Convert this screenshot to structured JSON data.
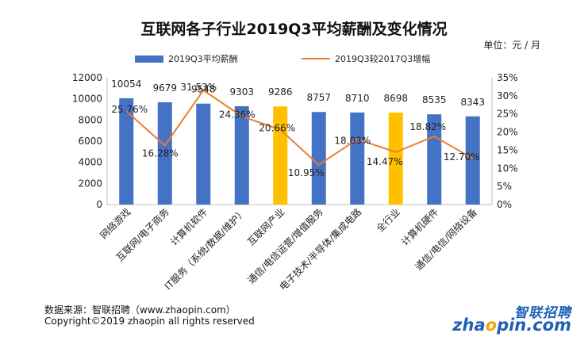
{
  "chart_data": {
    "type": "bar",
    "title": "互联网各子行业2019Q3平均薪酬及变化情况",
    "unit_label": "单位：元 / 月",
    "categories": [
      "网络游戏",
      "互联网/电子商务",
      "计算机软件",
      "IT服务（系统/数据/维护）",
      "互联网产业",
      "通信/电信运营/增值服务",
      "电子技术/半导体/集成电路",
      "全行业",
      "计算机硬件",
      "通信/电信/网络设备"
    ],
    "series": [
      {
        "name": "2019Q3平均薪酬",
        "type": "bar",
        "axis": "left",
        "values": [
          10054,
          9679,
          9548,
          9303,
          9286,
          8757,
          8710,
          8698,
          8535,
          8343
        ],
        "value_labels": [
          "10054",
          "9679",
          "9548",
          "9303",
          "9286",
          "8757",
          "8710",
          "8698",
          "8535",
          "8343"
        ],
        "color": "#4472C4",
        "highlight_color": "#FFC000",
        "highlight_indices": [
          4,
          7
        ]
      },
      {
        "name": "2019Q3较2017Q3增幅",
        "type": "line",
        "axis": "right",
        "values": [
          25.76,
          16.28,
          31.53,
          24.36,
          20.66,
          10.95,
          18.03,
          14.47,
          18.82,
          12.7
        ],
        "value_labels": [
          "25.76%",
          "16.28%",
          "31.53%",
          "24.36%",
          "20.66%",
          "10.95%",
          "18.03%",
          "14.47%",
          "18.82%",
          "12.70%"
        ],
        "color": "#ED7D31"
      }
    ],
    "y_left": {
      "min": 0,
      "max": 12000,
      "ticks": [
        "0",
        "2000",
        "4000",
        "6000",
        "8000",
        "10000",
        "12000"
      ]
    },
    "y_right": {
      "min": 0,
      "max": 35,
      "ticks": [
        "0%",
        "5%",
        "10%",
        "15%",
        "20%",
        "25%",
        "30%",
        "35%"
      ]
    },
    "grid": false,
    "legend_position": "top"
  },
  "footer": {
    "source": "数据来源：智联招聘（www.zhaopin.com）",
    "copyright": "Copyright©2019 zhaopin all rights reserved"
  },
  "logo": {
    "cn": "智联招聘",
    "en_a": "zha",
    "en_b": "o",
    "en_c": "pin.com"
  }
}
